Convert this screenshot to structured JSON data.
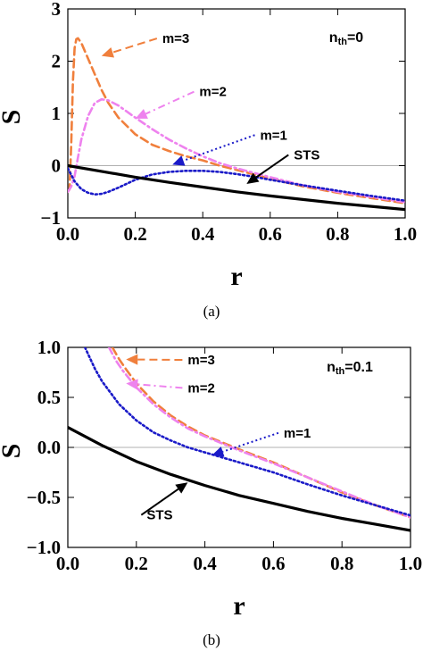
{
  "chart_data": [
    {
      "type": "line",
      "panel_label": "(a)",
      "condition": {
        "symbol": "n",
        "subscript": "th",
        "value": "=0"
      },
      "xlabel": "r",
      "ylabel": "S",
      "xlim": [
        0,
        1
      ],
      "ylim": [
        -1,
        3
      ],
      "xticks": [
        "0.0",
        "0.2",
        "0.4",
        "0.6",
        "0.8",
        "1.0"
      ],
      "yticks": [
        "-1",
        "0",
        "1",
        "2",
        "3"
      ],
      "grid": false,
      "series": [
        {
          "name": "m=3",
          "color": "#f07f3c",
          "dash": "dashed",
          "x": [
            0.0,
            0.005,
            0.01,
            0.015,
            0.02,
            0.025,
            0.03,
            0.04,
            0.05,
            0.06,
            0.08,
            0.1,
            0.12,
            0.15,
            0.2,
            0.25,
            0.3,
            0.35,
            0.4,
            0.45,
            0.5,
            0.6,
            0.7,
            0.8,
            0.9,
            1.0
          ],
          "y": [
            -0.5,
            -0.45,
            0.4,
            1.6,
            2.25,
            2.42,
            2.44,
            2.35,
            2.2,
            2.05,
            1.75,
            1.45,
            1.2,
            0.92,
            0.6,
            0.4,
            0.28,
            0.18,
            0.1,
            0.0,
            -0.08,
            -0.25,
            -0.4,
            -0.52,
            -0.62,
            -0.72
          ]
        },
        {
          "name": "m=2",
          "color": "#ee82ee",
          "dash": "dashdot",
          "x": [
            0.0,
            0.01,
            0.02,
            0.03,
            0.04,
            0.06,
            0.08,
            0.1,
            0.12,
            0.15,
            0.2,
            0.25,
            0.3,
            0.35,
            0.4,
            0.45,
            0.5,
            0.6,
            0.7,
            0.8,
            0.9,
            1.0
          ],
          "y": [
            -0.5,
            -0.4,
            -0.2,
            0.15,
            0.5,
            0.95,
            1.2,
            1.27,
            1.25,
            1.15,
            0.92,
            0.7,
            0.5,
            0.33,
            0.18,
            0.05,
            -0.05,
            -0.22,
            -0.38,
            -0.5,
            -0.6,
            -0.7
          ]
        },
        {
          "name": "m=1",
          "color": "#1a1ac8",
          "dash": "dotted",
          "x": [
            0.0,
            0.02,
            0.04,
            0.06,
            0.08,
            0.1,
            0.12,
            0.15,
            0.2,
            0.25,
            0.3,
            0.35,
            0.4,
            0.45,
            0.5,
            0.55,
            0.6,
            0.7,
            0.8,
            0.9,
            1.0
          ],
          "y": [
            -0.05,
            -0.3,
            -0.45,
            -0.52,
            -0.55,
            -0.54,
            -0.5,
            -0.42,
            -0.27,
            -0.17,
            -0.12,
            -0.1,
            -0.1,
            -0.12,
            -0.16,
            -0.21,
            -0.27,
            -0.38,
            -0.48,
            -0.58,
            -0.67
          ]
        },
        {
          "name": "STS",
          "color": "#000000",
          "dash": "solid",
          "x": [
            0.0,
            0.1,
            0.2,
            0.3,
            0.4,
            0.5,
            0.6,
            0.7,
            0.8,
            0.9,
            1.0
          ],
          "y": [
            0.0,
            -0.11,
            -0.22,
            -0.32,
            -0.41,
            -0.5,
            -0.58,
            -0.65,
            -0.72,
            -0.78,
            -0.84
          ]
        }
      ],
      "annotations": [
        {
          "label": "m=3",
          "tip": [
            0.1,
            2.1
          ],
          "text_at": [
            0.28,
            2.35
          ],
          "series": "m=3"
        },
        {
          "label": "m=2",
          "tip": [
            0.2,
            0.9
          ],
          "text_at": [
            0.39,
            1.33
          ],
          "series": "m=2"
        },
        {
          "label": "m=1",
          "tip": [
            0.31,
            0.02
          ],
          "text_at": [
            0.57,
            0.5
          ],
          "series": "m=1"
        },
        {
          "label": "STS",
          "tip": [
            0.53,
            -0.35
          ],
          "text_at": [
            0.67,
            0.12
          ],
          "series": "STS"
        }
      ]
    },
    {
      "type": "line",
      "panel_label": "(b)",
      "condition": {
        "symbol": "n",
        "subscript": "th",
        "value": "=0.1"
      },
      "xlabel": "r",
      "ylabel": "S",
      "xlim": [
        0,
        1
      ],
      "ylim": [
        -1,
        1
      ],
      "xticks": [
        "0.0",
        "0.2",
        "0.4",
        "0.6",
        "0.8",
        "1.0"
      ],
      "yticks": [
        "-1.0",
        "-0.5",
        "0.0",
        "0.5",
        "1.0"
      ],
      "grid": false,
      "series": [
        {
          "name": "m=3",
          "color": "#f07f3c",
          "dash": "dashed",
          "x": [
            0.13,
            0.15,
            0.17,
            0.2,
            0.25,
            0.3,
            0.35,
            0.4,
            0.45,
            0.5,
            0.6,
            0.7,
            0.8,
            0.9,
            1.0
          ],
          "y": [
            1.0,
            0.88,
            0.78,
            0.64,
            0.46,
            0.32,
            0.21,
            0.12,
            0.05,
            -0.02,
            -0.15,
            -0.3,
            -0.45,
            -0.58,
            -0.7
          ]
        },
        {
          "name": "m=2",
          "color": "#ee82ee",
          "dash": "dashdot",
          "x": [
            0.12,
            0.14,
            0.16,
            0.2,
            0.25,
            0.3,
            0.35,
            0.4,
            0.45,
            0.5,
            0.6,
            0.7,
            0.8,
            0.9,
            1.0
          ],
          "y": [
            1.0,
            0.87,
            0.77,
            0.6,
            0.43,
            0.3,
            0.19,
            0.11,
            0.04,
            -0.03,
            -0.16,
            -0.3,
            -0.44,
            -0.58,
            -0.7
          ]
        },
        {
          "name": "m=1",
          "color": "#1a1ac8",
          "dash": "dotted",
          "x": [
            0.05,
            0.08,
            0.1,
            0.15,
            0.2,
            0.25,
            0.3,
            0.35,
            0.4,
            0.45,
            0.5,
            0.6,
            0.7,
            0.8,
            0.9,
            1.0
          ],
          "y": [
            1.0,
            0.78,
            0.66,
            0.43,
            0.27,
            0.15,
            0.07,
            0.0,
            -0.05,
            -0.1,
            -0.15,
            -0.25,
            -0.37,
            -0.48,
            -0.58,
            -0.68
          ]
        },
        {
          "name": "STS",
          "color": "#000000",
          "dash": "solid",
          "x": [
            0.0,
            0.1,
            0.2,
            0.3,
            0.4,
            0.5,
            0.6,
            0.7,
            0.8,
            0.9,
            1.0
          ],
          "y": [
            0.2,
            0.02,
            -0.14,
            -0.27,
            -0.38,
            -0.48,
            -0.56,
            -0.64,
            -0.71,
            -0.77,
            -0.83
          ]
        }
      ],
      "annotations": [
        {
          "label": "m=3",
          "tip": [
            0.17,
            0.88
          ],
          "text_at": [
            0.35,
            0.83
          ],
          "series": "m=3"
        },
        {
          "label": "m=2",
          "tip": [
            0.17,
            0.64
          ],
          "text_at": [
            0.35,
            0.55
          ],
          "series": "m=2"
        },
        {
          "label": "m=1",
          "tip": [
            0.42,
            -0.08
          ],
          "text_at": [
            0.63,
            0.1
          ],
          "series": "m=1"
        },
        {
          "label": "STS",
          "tip": [
            0.35,
            -0.35
          ],
          "text_at": [
            0.23,
            -0.72
          ],
          "series": "STS"
        }
      ]
    }
  ]
}
